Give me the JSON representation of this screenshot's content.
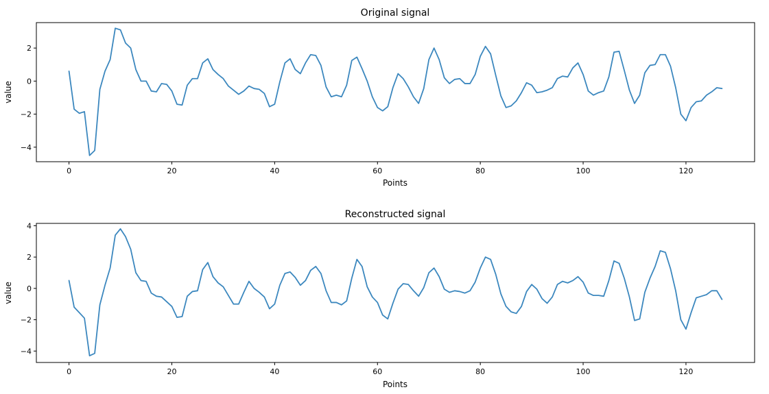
{
  "colors": {
    "series": "#3b87be",
    "axes": "#000000",
    "background": "#ffffff"
  },
  "chart_data": [
    {
      "type": "line",
      "title": "Original signal",
      "xlabel": "Points",
      "ylabel": "value",
      "xlim": [
        -6.35,
        133.35
      ],
      "ylim": [
        -4.88,
        3.54
      ],
      "xticks": [
        0,
        20,
        40,
        60,
        80,
        100,
        120
      ],
      "yticks": [
        -4,
        -2,
        0,
        2
      ],
      "grid": false,
      "series": [
        {
          "values": [
            0.6,
            -1.7,
            -1.95,
            -1.85,
            -4.5,
            -4.2,
            -0.5,
            0.6,
            1.3,
            3.2,
            3.1,
            2.3,
            2.0,
            0.7,
            0.0,
            0.0,
            -0.6,
            -0.65,
            -0.15,
            -0.2,
            -0.6,
            -1.4,
            -1.45,
            -0.25,
            0.15,
            0.15,
            1.1,
            1.35,
            0.7,
            0.4,
            0.15,
            -0.3,
            -0.55,
            -0.8,
            -0.6,
            -0.3,
            -0.45,
            -0.5,
            -0.75,
            -1.55,
            -1.4,
            -0.05,
            1.1,
            1.35,
            0.7,
            0.45,
            1.1,
            1.6,
            1.55,
            0.95,
            -0.35,
            -0.95,
            -0.85,
            -0.95,
            -0.25,
            1.25,
            1.45,
            0.75,
            0.0,
            -0.95,
            -1.6,
            -1.8,
            -1.55,
            -0.4,
            0.45,
            0.15,
            -0.35,
            -0.95,
            -1.35,
            -0.45,
            1.3,
            2.0,
            1.3,
            0.2,
            -0.15,
            0.1,
            0.15,
            -0.15,
            -0.15,
            0.4,
            1.5,
            2.1,
            1.65,
            0.35,
            -0.9,
            -1.6,
            -1.5,
            -1.2,
            -0.7,
            -0.1,
            -0.25,
            -0.7,
            -0.65,
            -0.55,
            -0.4,
            0.15,
            0.3,
            0.25,
            0.8,
            1.1,
            0.4,
            -0.6,
            -0.85,
            -0.7,
            -0.6,
            0.25,
            1.75,
            1.8,
            0.65,
            -0.55,
            -1.35,
            -0.85,
            0.5,
            0.95,
            1.0,
            1.6,
            1.6,
            0.9,
            -0.4,
            -2.0,
            -2.4,
            -1.6,
            -1.25,
            -1.2,
            -0.85,
            -0.65,
            -0.4,
            -0.45
          ]
        }
      ]
    },
    {
      "type": "line",
      "title": "Reconstructed signal",
      "xlabel": "Points",
      "ylabel": "value",
      "xlim": [
        -6.35,
        133.35
      ],
      "ylim": [
        -4.73,
        4.15
      ],
      "xticks": [
        0,
        20,
        40,
        60,
        80,
        100,
        120
      ],
      "yticks": [
        -4,
        -2,
        0,
        2,
        4
      ],
      "grid": false,
      "series": [
        {
          "values": [
            0.5,
            -1.2,
            -1.55,
            -1.9,
            -4.3,
            -4.15,
            -1.05,
            0.2,
            1.3,
            3.4,
            3.8,
            3.3,
            2.5,
            1.0,
            0.5,
            0.45,
            -0.3,
            -0.5,
            -0.55,
            -0.85,
            -1.15,
            -1.85,
            -1.8,
            -0.5,
            -0.2,
            -0.15,
            1.2,
            1.65,
            0.75,
            0.35,
            0.1,
            -0.45,
            -1.0,
            -1.0,
            -0.25,
            0.45,
            0.0,
            -0.25,
            -0.55,
            -1.3,
            -1.0,
            0.2,
            0.95,
            1.05,
            0.7,
            0.2,
            0.5,
            1.15,
            1.4,
            0.95,
            -0.15,
            -0.9,
            -0.9,
            -1.05,
            -0.8,
            0.65,
            1.85,
            1.4,
            0.1,
            -0.55,
            -0.9,
            -1.7,
            -1.95,
            -0.95,
            -0.05,
            0.3,
            0.25,
            -0.15,
            -0.5,
            0.05,
            1.0,
            1.3,
            0.75,
            -0.05,
            -0.25,
            -0.15,
            -0.2,
            -0.3,
            -0.15,
            0.4,
            1.3,
            2.0,
            1.85,
            0.9,
            -0.35,
            -1.15,
            -1.5,
            -1.6,
            -1.15,
            -0.2,
            0.25,
            -0.05,
            -0.65,
            -0.95,
            -0.55,
            0.25,
            0.45,
            0.35,
            0.5,
            0.75,
            0.4,
            -0.3,
            -0.45,
            -0.45,
            -0.5,
            0.5,
            1.75,
            1.6,
            0.65,
            -0.55,
            -2.05,
            -1.95,
            -0.25,
            0.65,
            1.4,
            2.4,
            2.3,
            1.25,
            -0.15,
            -2.0,
            -2.6,
            -1.55,
            -0.6,
            -0.5,
            -0.4,
            -0.15,
            -0.15,
            -0.7
          ]
        }
      ]
    }
  ]
}
